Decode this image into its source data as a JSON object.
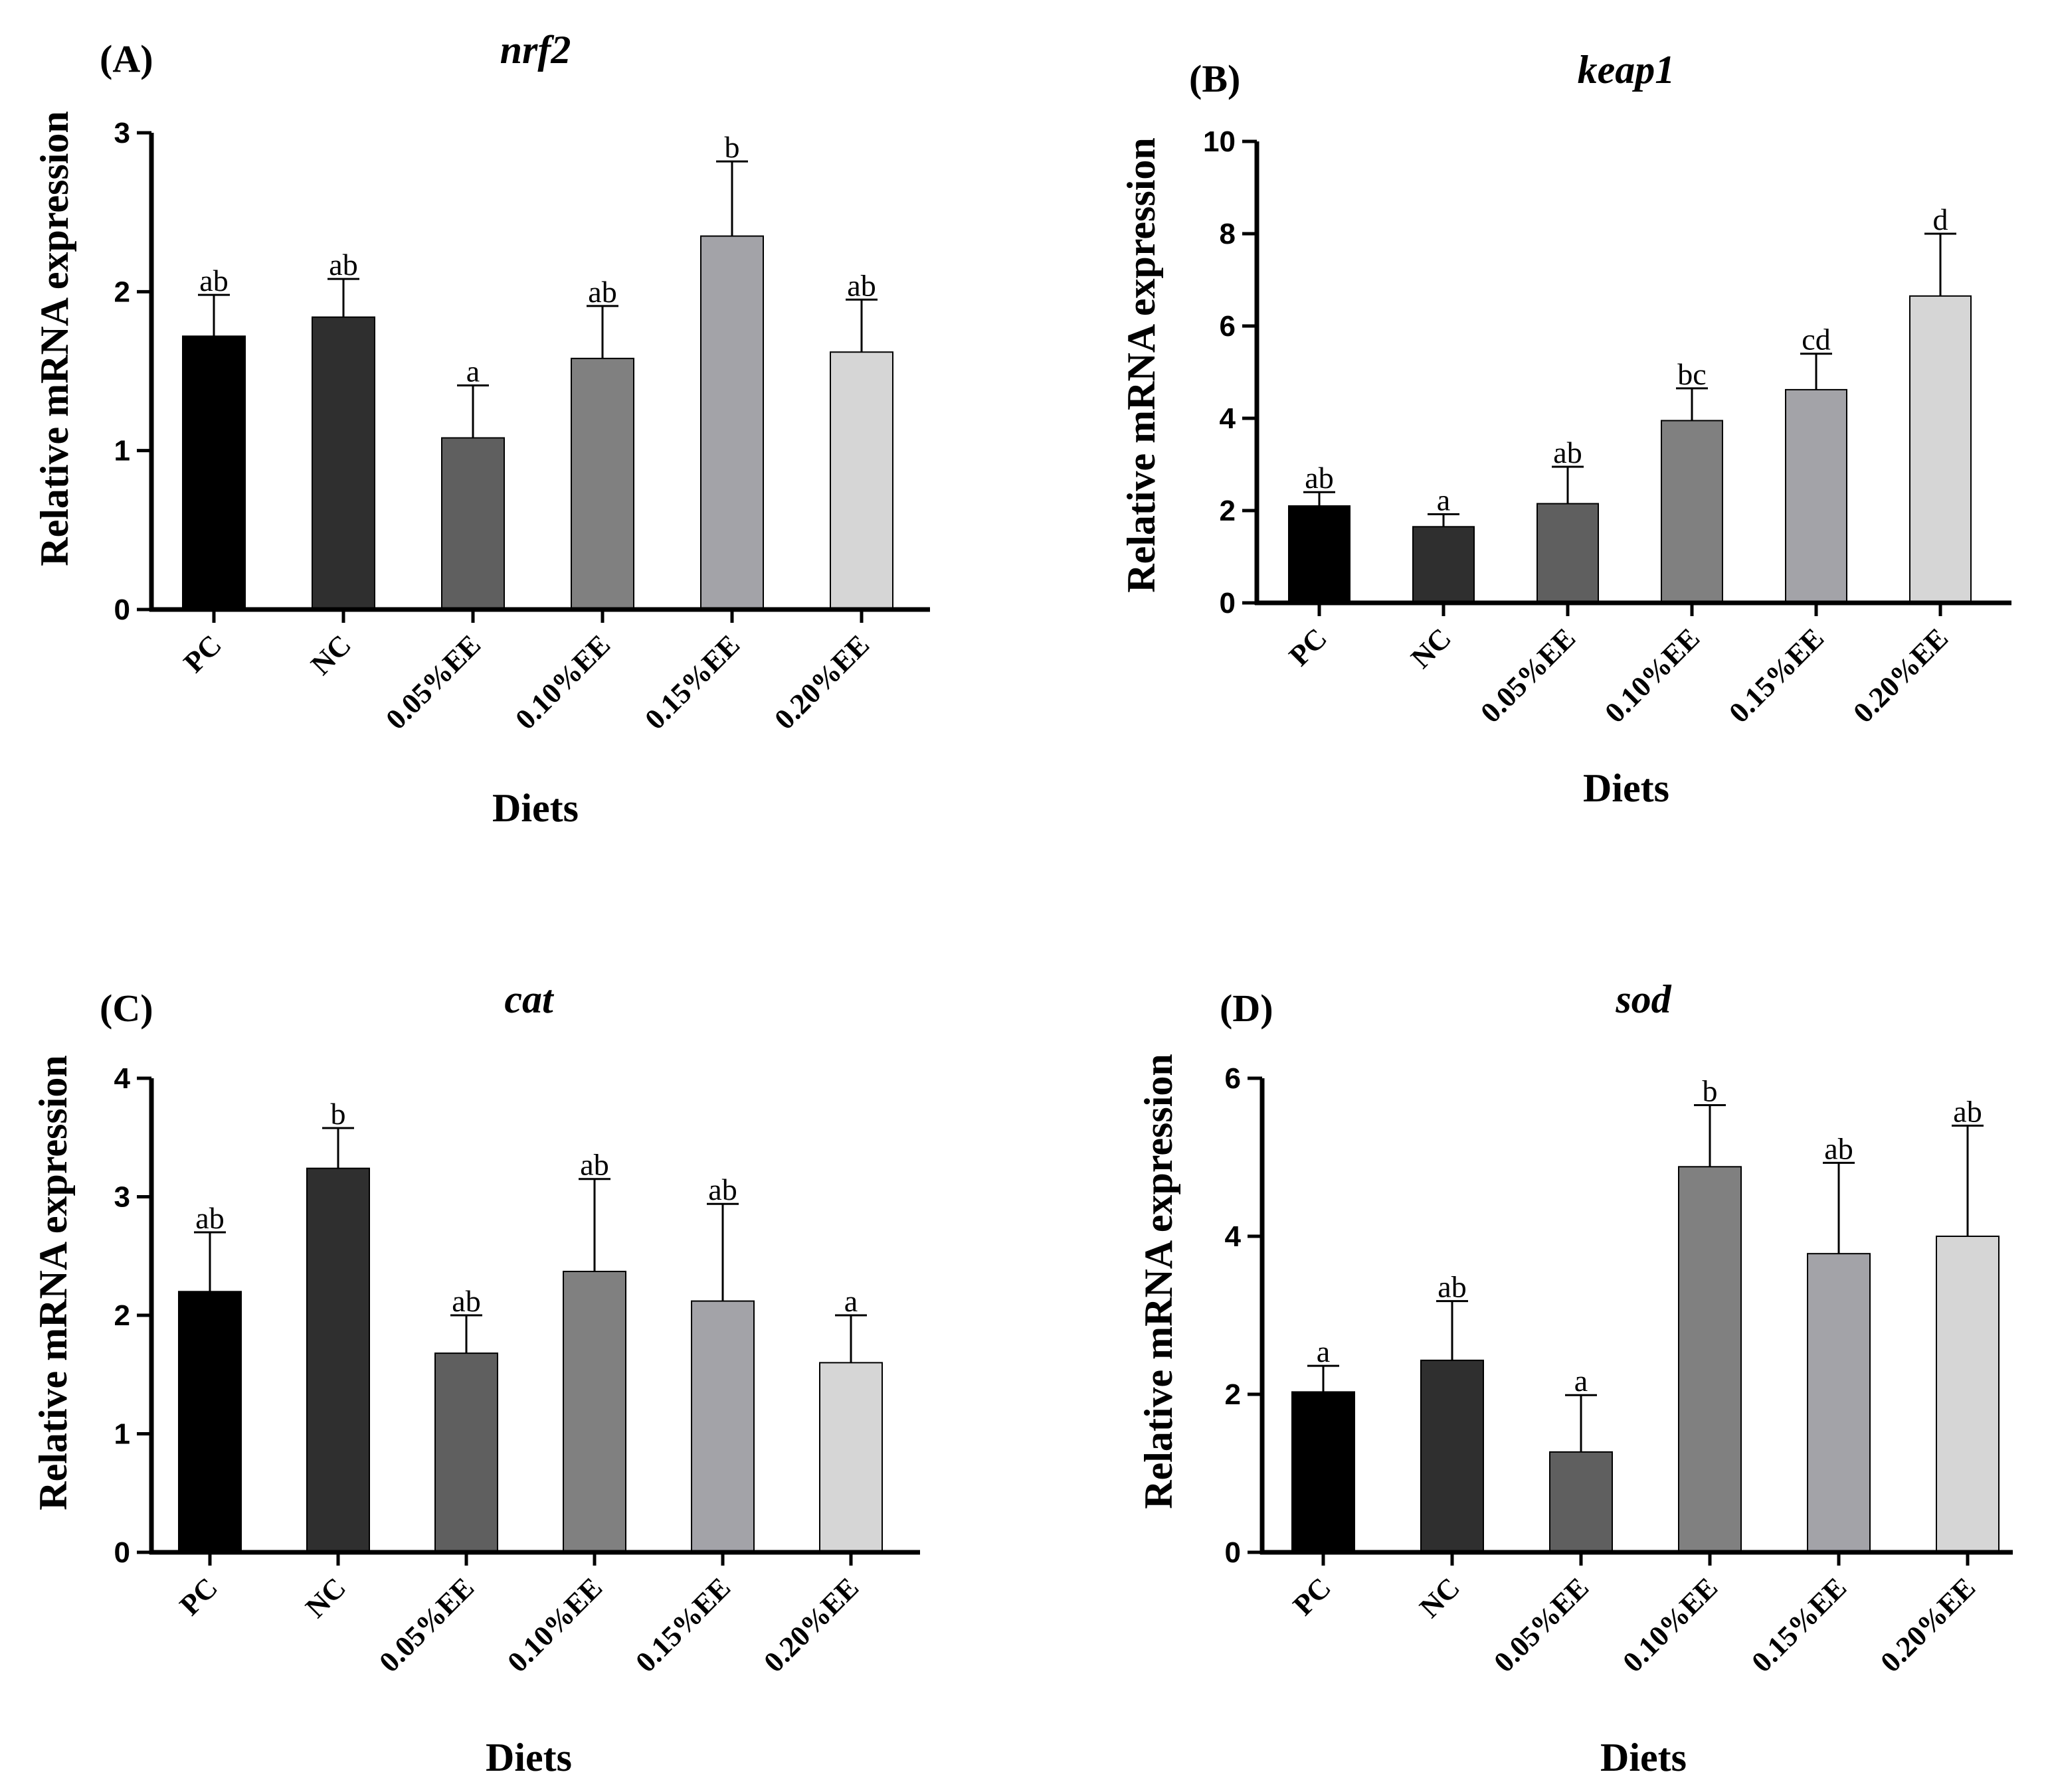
{
  "chart_data": [
    {
      "panel": "(A)",
      "type": "bar",
      "title": "nrf2",
      "xlabel": "Diets",
      "ylabel": "Relative mRNA expression",
      "ylim": [
        0,
        3
      ],
      "yticks": [
        0,
        1,
        2,
        3
      ],
      "categories": [
        "PC",
        "NC",
        "0.05%EE",
        "0.10%EE",
        "0.15%EE",
        "0.20%EE"
      ],
      "values": [
        1.72,
        1.84,
        1.08,
        1.58,
        2.35,
        1.62
      ],
      "errors": [
        0.26,
        0.24,
        0.33,
        0.33,
        0.47,
        0.33
      ],
      "significance": [
        "ab",
        "ab",
        "a",
        "ab",
        "b",
        "ab"
      ],
      "colors": [
        "#000000",
        "#2f2f2f",
        "#5f5f5f",
        "#808080",
        "#a3a3a8",
        "#d6d6d6"
      ]
    },
    {
      "panel": "(B)",
      "type": "bar",
      "title": "keap1",
      "xlabel": "Diets",
      "ylabel": "Relative mRNA expression",
      "ylim": [
        0,
        10
      ],
      "yticks": [
        0,
        2,
        4,
        6,
        8,
        10
      ],
      "categories": [
        "PC",
        "NC",
        "0.05%EE",
        "0.10%EE",
        "0.15%EE",
        "0.20%EE"
      ],
      "values": [
        2.1,
        1.65,
        2.15,
        3.95,
        4.62,
        6.65
      ],
      "errors": [
        0.3,
        0.27,
        0.8,
        0.7,
        0.78,
        1.35
      ],
      "significance": [
        "ab",
        "a",
        "ab",
        "bc",
        "cd",
        "d"
      ],
      "colors": [
        "#000000",
        "#2f2f2f",
        "#5f5f5f",
        "#808080",
        "#a3a3a8",
        "#d6d6d6"
      ]
    },
    {
      "panel": "(C)",
      "type": "bar",
      "title": "cat",
      "xlabel": "Diets",
      "ylabel": "Relative mRNA expression",
      "ylim": [
        0,
        4
      ],
      "yticks": [
        0,
        1,
        2,
        3,
        4
      ],
      "categories": [
        "PC",
        "NC",
        "0.05%EE",
        "0.10%EE",
        "0.15%EE",
        "0.20%EE"
      ],
      "values": [
        2.2,
        3.24,
        1.68,
        2.37,
        2.12,
        1.6
      ],
      "errors": [
        0.5,
        0.34,
        0.32,
        0.78,
        0.82,
        0.4
      ],
      "significance": [
        "ab",
        "b",
        "ab",
        "ab",
        "ab",
        "a"
      ],
      "colors": [
        "#000000",
        "#2f2f2f",
        "#5f5f5f",
        "#808080",
        "#a3a3a8",
        "#d6d6d6"
      ]
    },
    {
      "panel": "(D)",
      "type": "bar",
      "title": "sod",
      "xlabel": "Diets",
      "ylabel": "Relative mRNA expression",
      "ylim": [
        0,
        6
      ],
      "yticks": [
        0,
        2,
        4,
        6
      ],
      "categories": [
        "PC",
        "NC",
        "0.05%EE",
        "0.10%EE",
        "0.15%EE",
        "0.20%EE"
      ],
      "values": [
        2.03,
        2.43,
        1.27,
        4.88,
        3.78,
        4.0
      ],
      "errors": [
        0.33,
        0.75,
        0.72,
        0.78,
        1.15,
        1.4
      ],
      "significance": [
        "a",
        "ab",
        "a",
        "b",
        "ab",
        "ab"
      ],
      "colors": [
        "#000000",
        "#2f2f2f",
        "#5f5f5f",
        "#808080",
        "#a3a3a8",
        "#d6d6d6"
      ]
    }
  ]
}
